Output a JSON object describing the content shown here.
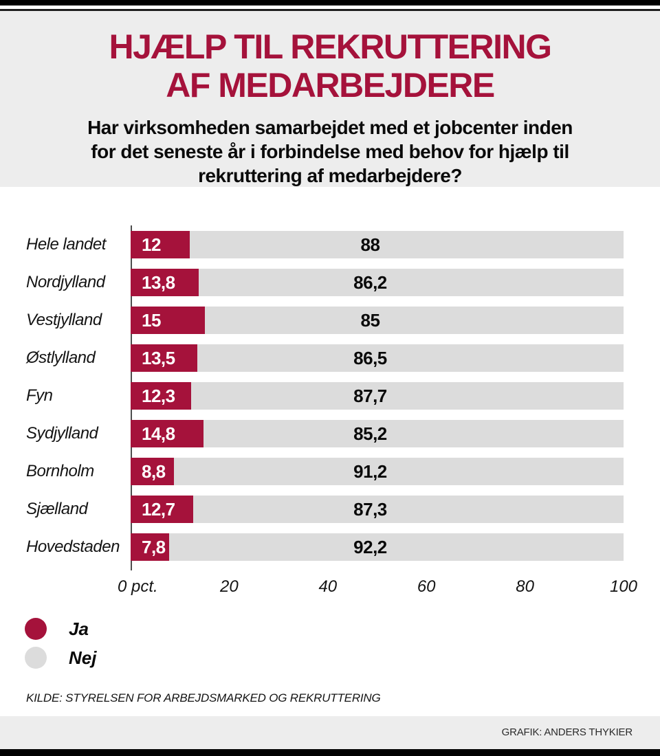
{
  "header": {
    "title_lines": [
      "HJÆLP TIL REKRUTTERING",
      "AF MEDARBEJDERE"
    ],
    "subtitle_lines": [
      "Har virksomheden samarbejdet med et jobcenter inden",
      "for det seneste år i forbindelse med behov for hjælp til",
      "rekruttering af medarbejdere?"
    ]
  },
  "chart_data": {
    "type": "bar",
    "orientation": "horizontal",
    "stacked": true,
    "title": "HJÆLP TIL REKRUTTERING AF MEDARBEJDERE",
    "categories": [
      "Hele landet",
      "Nordjylland",
      "Vestjylland",
      "Østlylland",
      "Fyn",
      "Sydjylland",
      "Bornholm",
      "Sjælland",
      "Hovedstaden"
    ],
    "series": [
      {
        "name": "Ja",
        "color": "#a5123b",
        "values": [
          12,
          13.8,
          15,
          13.5,
          12.3,
          14.8,
          8.8,
          12.7,
          7.8
        ],
        "labels": [
          "12",
          "13,8",
          "15",
          "13,5",
          "12,3",
          "14,8",
          "8,8",
          "12,7",
          "7,8"
        ]
      },
      {
        "name": "Nej",
        "color": "#dcdcdc",
        "values": [
          88,
          86.2,
          85,
          86.5,
          87.7,
          85.2,
          91.2,
          87.3,
          92.2
        ],
        "labels": [
          "88",
          "86,2",
          "85",
          "86,5",
          "87,7",
          "85,2",
          "91,2",
          "87,3",
          "92,2"
        ]
      }
    ],
    "xlim": [
      0,
      100
    ],
    "x_ticks": [
      {
        "value": 0,
        "label": "0 pct."
      },
      {
        "value": 20,
        "label": "20"
      },
      {
        "value": 40,
        "label": "40"
      },
      {
        "value": 60,
        "label": "60"
      },
      {
        "value": 80,
        "label": "80"
      },
      {
        "value": 100,
        "label": "100"
      }
    ],
    "grid": false,
    "legend_position": "bottom-left"
  },
  "legend": [
    {
      "label": "Ja",
      "color": "#a5123b"
    },
    {
      "label": "Nej",
      "color": "#dcdcdc"
    }
  ],
  "source": "KILDE: STYRELSEN FOR ARBEJDSMARKED OG REKRUTTERING",
  "credit": "GRAFIK: ANDERS THYKIER"
}
